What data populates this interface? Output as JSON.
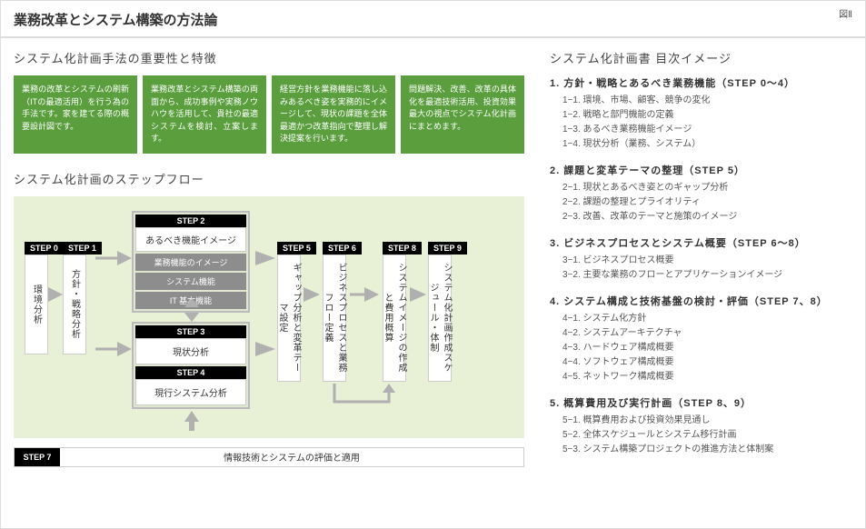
{
  "page_title": "業務改革とシステム構築の方法論",
  "fig_label": "図Ⅱ",
  "left": {
    "sec1_title": "システム化計画手法の重要性と特徴",
    "green_boxes": [
      "業務の改革とシステムの刷新（ITの最適活用）を行う為の手法です。家を建てる際の概要設計図です。",
      "業務改革とシステム構築の両面から、成功事例や実務ノウハウを活用して、貴社の最適システムを検討、立案します。",
      "経営方針を業務機能に落し込みあるべき姿を実務的にイメージして、現状の課題を全体最適かつ改革指向で整理し解決提案を行います。",
      "問題解決、改善、改革の具体化を最適技術活用、投資効果最大の視点でシステム化計画にまとめます。"
    ],
    "sec2_title": "システム化計画のステップフロー",
    "steps": {
      "s0": {
        "label": "STEP 0",
        "title": "環境分析"
      },
      "s1": {
        "label": "STEP 1",
        "title": "方針・戦略分析"
      },
      "s2": {
        "label": "STEP 2",
        "title": "あるべき機能イメージ",
        "subs": [
          "業務機能のイメージ",
          "システム機能",
          "IT 基本機能"
        ]
      },
      "s3": {
        "label": "STEP 3",
        "title": "現状分析"
      },
      "s4": {
        "label": "STEP 4",
        "title": "現行システム分析"
      },
      "s5": {
        "label": "STEP 5",
        "title": "ギャップ分析と変革テーマ設定"
      },
      "s6": {
        "label": "STEP 6",
        "title": "ビジネスプロセスと業務フロー定義"
      },
      "s7": {
        "label": "STEP 7",
        "title": "情報技術とシステムの評価と適用"
      },
      "s8": {
        "label": "STEP 8",
        "title": "システムイメージの作成と費用概算"
      },
      "s9": {
        "label": "STEP 9",
        "title": "システム化計画作成スケジュール・体制"
      }
    }
  },
  "right": {
    "title": "システム化計画書 目次イメージ",
    "sections": [
      {
        "head": "1. 方針・戦略とあるべき業務機能（STEP 0～4）",
        "items": [
          "1−1. 環境、市場、顧客、競争の変化",
          "1−2. 戦略と部門機能の定義",
          "1−3. あるべき業務機能イメージ",
          "1−4. 現状分析（業務、システム）"
        ]
      },
      {
        "head": "2. 課題と変革テーマの整理（STEP 5）",
        "items": [
          "2−1. 現状とあるべき姿とのギャップ分析",
          "2−2. 課題の整理とプライオリティ",
          "2−3. 改善、改革のテーマと施策のイメージ"
        ]
      },
      {
        "head": "3. ビジネスプロセスとシステム概要（STEP 6～8）",
        "items": [
          "3−1. ビジネスプロセス概要",
          "3−2. 主要な業務のフローとアプリケーションイメージ"
        ]
      },
      {
        "head": "4. システム構成と技術基盤の検討・評価（STEP 7、8）",
        "items": [
          "4−1. システム化方針",
          "4−2. システムアーキテクチャ",
          "4−3. ハードウェア構成概要",
          "4−4. ソフトウェア構成概要",
          "4−5. ネットワーク構成概要"
        ]
      },
      {
        "head": "5. 概算費用及び実行計画（STEP 8、9）",
        "items": [
          "5−1. 概算費用および投資効果見通し",
          "5−2. 全体スケジュールとシステム移行計画",
          "5−3. システム構築プロジェクトの推進方法と体制案"
        ]
      }
    ]
  },
  "colors": {
    "green": "#5a9e3e",
    "flow_bg": "#e8f0d6",
    "arrow": "#b0b0b0"
  }
}
